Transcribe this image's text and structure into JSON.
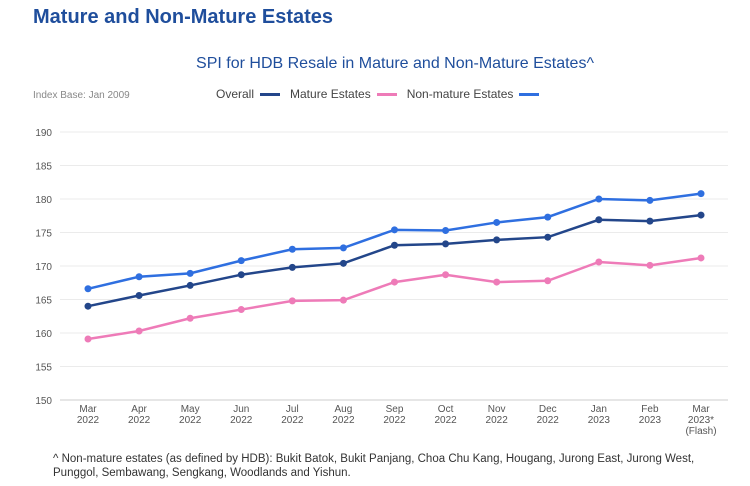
{
  "page_title": "Mature and Non-Mature Estates",
  "footnote": "^ Non-mature estates (as defined by HDB): Bukit Batok, Bukit Panjang, Choa Chu Kang, Hougang, Jurong East, Jurong West, Punggol, Sembawang, Sengkang, Woodlands and Yishun.",
  "chart_data": {
    "type": "line",
    "title": "SPI for HDB Resale in Mature and Non-Mature Estates^",
    "subtitle": "Index Base: Jan 2009",
    "categories": [
      [
        "Mar",
        "2022"
      ],
      [
        "Apr",
        "2022"
      ],
      [
        "May",
        "2022"
      ],
      [
        "Jun",
        "2022"
      ],
      [
        "Jul",
        "2022"
      ],
      [
        "Aug",
        "2022"
      ],
      [
        "Sep",
        "2022"
      ],
      [
        "Oct",
        "2022"
      ],
      [
        "Nov",
        "2022"
      ],
      [
        "Dec",
        "2022"
      ],
      [
        "Jan",
        "2023"
      ],
      [
        "Feb",
        "2023"
      ],
      [
        "Mar",
        "2023*",
        "(Flash)"
      ]
    ],
    "ylim": [
      150,
      190
    ],
    "yticks": [
      150,
      155,
      160,
      165,
      170,
      175,
      180,
      185,
      190
    ],
    "grid": true,
    "legend_position": "top",
    "series": [
      {
        "name": "Overall",
        "color": "#23468a",
        "values": [
          164.0,
          165.6,
          167.1,
          168.7,
          169.8,
          170.4,
          173.1,
          173.3,
          173.9,
          174.3,
          176.9,
          176.7,
          177.6
        ]
      },
      {
        "name": "Mature Estates",
        "color": "#ee7bb8",
        "values": [
          159.1,
          160.3,
          162.2,
          163.5,
          164.8,
          164.9,
          167.6,
          168.7,
          167.6,
          167.8,
          170.6,
          170.1,
          171.2
        ]
      },
      {
        "name": "Non-mature Estates",
        "color": "#2f6fe0",
        "values": [
          166.6,
          168.4,
          168.9,
          170.8,
          172.5,
          172.7,
          175.4,
          175.3,
          176.5,
          177.3,
          180.0,
          179.8,
          180.8
        ]
      }
    ]
  }
}
